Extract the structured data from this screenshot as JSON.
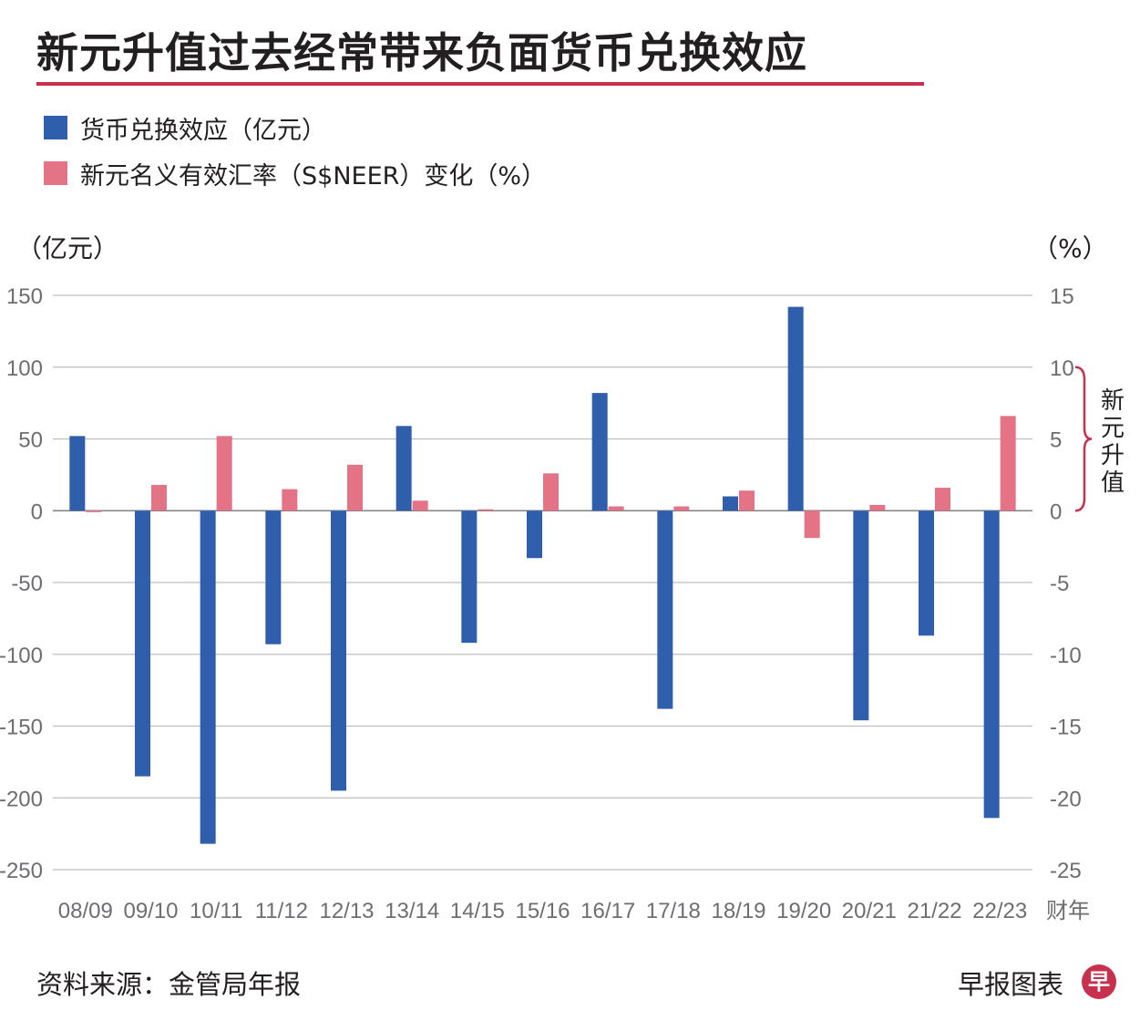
{
  "title": "新元升值过去经常带来负面货币兑换效应",
  "legend": [
    {
      "label": "货币兑换效应（亿元）",
      "color": "#2f5fac"
    },
    {
      "label": "新元名义有效汇率（S$NEER）变化（%）",
      "color": "#e47386"
    }
  ],
  "footer": {
    "source": "资料来源：金管局年报",
    "credit": "早报图表",
    "logo_char": "早"
  },
  "colors": {
    "accent": "#c8314e",
    "grid": "#bcbec0",
    "axis": "#6d6e71"
  },
  "chart_data": {
    "type": "bar",
    "categories": [
      "08/09",
      "09/10",
      "10/11",
      "11/12",
      "12/13",
      "13/14",
      "14/15",
      "15/16",
      "16/17",
      "17/18",
      "18/19",
      "19/20",
      "20/21",
      "21/22",
      "22/23"
    ],
    "x_unit": "财年",
    "left_axis": {
      "unit": "（亿元）",
      "ylim": [
        -250,
        150
      ],
      "ticks": [
        "150",
        "100",
        "50",
        "0",
        "-50",
        "-100",
        "-150",
        "-200",
        "-250"
      ]
    },
    "right_axis": {
      "unit": "（%）",
      "ylim": [
        -25,
        15
      ],
      "ticks": [
        "15",
        "10",
        "5",
        "0",
        "-5",
        "-10",
        "-15",
        "-20",
        "-25"
      ]
    },
    "series": [
      {
        "name": "货币兑换效应（亿元）",
        "axis": "left",
        "color": "#2f5fac",
        "values": [
          52,
          -185,
          -232,
          -93,
          -195,
          59,
          -92,
          -33,
          82,
          -138,
          10,
          142,
          -146,
          -87,
          -214
        ]
      },
      {
        "name": "新元名义有效汇率（S$NEER）变化（%）",
        "axis": "right",
        "color": "#e47386",
        "values": [
          -0.1,
          1.8,
          5.2,
          1.5,
          3.2,
          0.7,
          0.1,
          2.6,
          0.3,
          0.3,
          1.4,
          -1.9,
          0.4,
          1.6,
          6.6
        ]
      }
    ],
    "annotation": {
      "text": [
        "新",
        "元",
        "升",
        "值"
      ],
      "range_right": [
        0,
        10
      ],
      "color": "#c8314e"
    },
    "grid": true,
    "legend_position": "top-left"
  }
}
